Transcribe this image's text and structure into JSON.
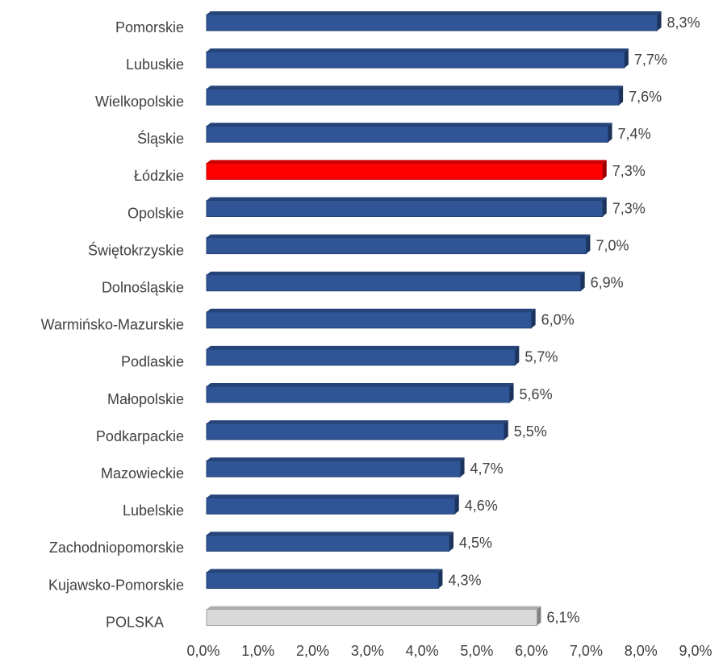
{
  "chart_data": {
    "type": "bar",
    "orientation": "horizontal",
    "categories": [
      "Pomorskie",
      "Lubuskie",
      "Wielkopolskie",
      "Śląskie",
      "Łódzkie",
      "Opolskie",
      "Świętokrzyskie",
      "Dolnośląskie",
      "Warmińsko-Mazurskie",
      "Podlaskie",
      "Małopolskie",
      "Podkarpackie",
      "Mazowieckie",
      "Lubelskie",
      "Zachodniopomorskie",
      "Kujawsko-Pomorskie",
      "POLSKA"
    ],
    "values": [
      8.3,
      7.7,
      7.6,
      7.4,
      7.3,
      7.3,
      7.0,
      6.9,
      6.0,
      5.7,
      5.6,
      5.5,
      4.7,
      4.6,
      4.5,
      4.3,
      6.1
    ],
    "value_labels": [
      "8,3%",
      "7,7%",
      "7,6%",
      "7,4%",
      "7,3%",
      "7,3%",
      "7,0%",
      "6,9%",
      "6,0%",
      "5,7%",
      "5,6%",
      "5,5%",
      "4,7%",
      "4,6%",
      "4,5%",
      "4,3%",
      "6,1%"
    ],
    "colors": [
      "#2f5597",
      "#2f5597",
      "#2f5597",
      "#2f5597",
      "#ff0000",
      "#2f5597",
      "#2f5597",
      "#2f5597",
      "#2f5597",
      "#2f5597",
      "#2f5597",
      "#2f5597",
      "#2f5597",
      "#2f5597",
      "#2f5597",
      "#2f5597",
      "#d9d9d9"
    ],
    "xlim": [
      0,
      9
    ],
    "xticks": [
      {
        "value": 0,
        "label": "0,0%"
      },
      {
        "value": 1,
        "label": "1,0%"
      },
      {
        "value": 2,
        "label": "2,0%"
      },
      {
        "value": 3,
        "label": "3,0%"
      },
      {
        "value": 4,
        "label": "4,0%"
      },
      {
        "value": 5,
        "label": "5,0%"
      },
      {
        "value": 6,
        "label": "6,0%"
      },
      {
        "value": 7,
        "label": "7,0%"
      },
      {
        "value": 8,
        "label": "8,0%"
      },
      {
        "value": 9,
        "label": "9,0%"
      }
    ],
    "grid": false
  }
}
